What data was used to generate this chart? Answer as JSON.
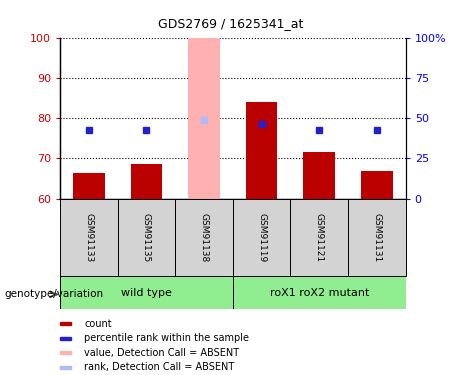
{
  "title": "GDS2769 / 1625341_at",
  "samples": [
    "GSM91133",
    "GSM91135",
    "GSM91138",
    "GSM91119",
    "GSM91121",
    "GSM91131"
  ],
  "bar_values": [
    66.5,
    68.5,
    100.0,
    84.0,
    71.5,
    67.0
  ],
  "blue_dot_values": [
    77.0,
    77.0,
    79.5,
    78.5,
    77.0,
    77.0
  ],
  "absent_bar_index": 2,
  "absent_bar_color": "#ffb0b0",
  "absent_dot_color": "#b0b8ff",
  "ylim_left": [
    60,
    100
  ],
  "ylim_right": [
    0,
    100
  ],
  "yticks_left": [
    60,
    70,
    80,
    90,
    100
  ],
  "yticks_right": [
    0,
    25,
    50,
    75,
    100
  ],
  "ytick_labels_right": [
    "0",
    "25",
    "50",
    "75",
    "100%"
  ],
  "bar_color": "#bb0000",
  "dot_color": "#2222cc",
  "grid_lines": [
    70,
    80,
    90,
    100
  ],
  "legend_items": [
    {
      "color": "#bb0000",
      "label": "count"
    },
    {
      "color": "#2222cc",
      "label": "percentile rank within the sample"
    },
    {
      "color": "#ffb0b0",
      "label": "value, Detection Call = ABSENT"
    },
    {
      "color": "#b0b8ff",
      "label": "rank, Detection Call = ABSENT"
    }
  ],
  "wt_color": "#90ee90",
  "mut_color": "#90ee90",
  "label_bg_color": "#d3d3d3"
}
